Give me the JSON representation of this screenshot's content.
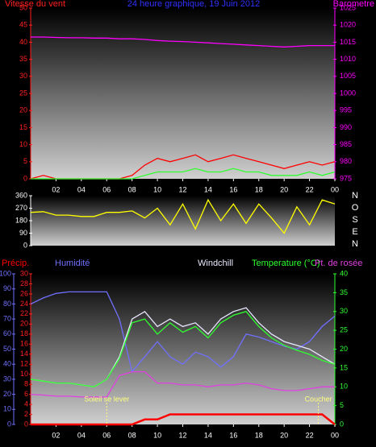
{
  "chart_data": [
    {
      "type": "line",
      "title": "24 heure graphique, 19 Juin 2012",
      "title_color": "#3030ff",
      "ylabel": "Vitesse du vent",
      "ylabel_color": "#ff2020",
      "y2label": "Barometre",
      "y2label_color": "#ff00ff",
      "x": [
        0,
        1,
        2,
        3,
        4,
        5,
        6,
        7,
        8,
        9,
        10,
        11,
        12,
        13,
        14,
        15,
        16,
        17,
        18,
        19,
        20,
        21,
        22,
        23,
        24
      ],
      "xlim": [
        0,
        24
      ],
      "xticks": [
        {
          "value": 2,
          "label": "02"
        },
        {
          "value": 4,
          "label": "04"
        },
        {
          "value": 6,
          "label": "06"
        },
        {
          "value": 8,
          "label": "08"
        },
        10,
        12,
        14,
        16,
        18,
        20,
        22,
        {
          "value": 24,
          "label": "00"
        }
      ],
      "ylim": [
        0,
        50
      ],
      "yticks": [
        0,
        5,
        10,
        15,
        20,
        25,
        30,
        35,
        40,
        45,
        50
      ],
      "y2lim": [
        975,
        1025
      ],
      "y2ticks": [
        975,
        980,
        985,
        990,
        995,
        1000,
        1005,
        1010,
        1015,
        1020,
        1025
      ],
      "series": [
        {
          "color": "#ff0000",
          "values": [
            0,
            1,
            0,
            0,
            0,
            0,
            0,
            0,
            1,
            4,
            6,
            5,
            6,
            7,
            5,
            6,
            7,
            6,
            5,
            4,
            3,
            4,
            5,
            4,
            5
          ]
        },
        {
          "color": "#30ff30",
          "values": [
            0,
            0,
            0,
            0,
            0,
            0,
            0,
            0,
            0,
            1,
            2,
            2,
            2,
            3,
            2,
            2,
            3,
            2,
            2,
            1,
            1,
            1,
            2,
            1,
            2
          ]
        },
        {
          "color": "#ff00ff",
          "axis": "y2",
          "values": [
            1016.5,
            1016.5,
            1016.4,
            1016.3,
            1016.3,
            1016.2,
            1016.2,
            1016,
            1016,
            1015.8,
            1015.5,
            1015.3,
            1015.2,
            1015,
            1014.8,
            1014.6,
            1014.4,
            1014.2,
            1014,
            1013.8,
            1013.6,
            1013.8,
            1014,
            1014,
            1014
          ]
        }
      ]
    },
    {
      "type": "line",
      "x": [
        0,
        1,
        2,
        3,
        4,
        5,
        6,
        7,
        8,
        9,
        10,
        11,
        12,
        13,
        14,
        15,
        16,
        17,
        18,
        19,
        20,
        21,
        22,
        23,
        24
      ],
      "xlim": [
        0,
        24
      ],
      "ylim": [
        0,
        360
      ],
      "yticks": [
        0,
        90,
        180,
        270,
        360
      ],
      "directions": [
        "N",
        "O",
        "S",
        "E",
        "N"
      ],
      "series": [
        {
          "color": "#ffff00",
          "values": [
            240,
            245,
            220,
            220,
            210,
            210,
            240,
            240,
            250,
            200,
            270,
            150,
            300,
            120,
            330,
            180,
            300,
            160,
            300,
            200,
            90,
            280,
            150,
            330,
            300
          ]
        }
      ]
    },
    {
      "type": "line",
      "x": [
        0,
        1,
        2,
        3,
        4,
        5,
        6,
        7,
        8,
        9,
        10,
        11,
        12,
        13,
        14,
        15,
        16,
        17,
        18,
        19,
        20,
        21,
        22,
        23,
        24
      ],
      "xlim": [
        0,
        24
      ],
      "xticks": [
        {
          "value": 2,
          "label": "02"
        },
        {
          "value": 4,
          "label": "04"
        },
        {
          "value": 6,
          "label": "06"
        },
        {
          "value": 8,
          "label": "08"
        },
        10,
        12,
        14,
        16,
        18,
        20,
        22,
        {
          "value": 24,
          "label": "00"
        }
      ],
      "ylim": [
        0,
        100
      ],
      "yticks": [
        0,
        10,
        20,
        30,
        40,
        50,
        60,
        70,
        80,
        90,
        100
      ],
      "ycolor": "#7070ff",
      "precip_lim": [
        0,
        30
      ],
      "precip_ticks": [
        0,
        2,
        4,
        6,
        8,
        10,
        12,
        14,
        16,
        18,
        20,
        22,
        24,
        26,
        28,
        30
      ],
      "precip_color": "#ff2020",
      "y2lim": [
        0,
        40
      ],
      "y2ticks": [
        0,
        5,
        10,
        15,
        20,
        25,
        30,
        35,
        40
      ],
      "y2color": "#30ff30",
      "series": [
        {
          "name": "Précip.",
          "color": "#ff0000",
          "axis": "precip",
          "values": [
            0,
            0,
            0,
            0,
            0,
            0,
            0,
            0,
            0,
            1,
            1,
            2,
            2,
            2,
            2,
            2,
            2,
            2,
            2,
            2,
            2,
            2,
            2,
            2,
            0
          ]
        },
        {
          "name": "Humidité",
          "color": "#7070ff",
          "values": [
            80,
            84,
            87,
            88,
            88,
            88,
            88,
            70,
            35,
            45,
            55,
            45,
            40,
            48,
            45,
            38,
            45,
            60,
            58,
            55,
            52,
            50,
            55,
            65,
            72
          ]
        },
        {
          "name": "Windchill",
          "color": "#e8e8ff",
          "axis": "y2",
          "values": [
            12,
            11.5,
            11,
            11,
            10.5,
            10,
            12,
            18,
            28,
            30,
            26,
            28,
            26,
            27,
            24,
            28,
            30,
            31,
            27,
            24,
            22,
            21,
            20,
            18,
            16
          ]
        },
        {
          "name": "Temperature (°C)",
          "color": "#30ff30",
          "axis": "y2",
          "values": [
            12,
            11.5,
            11,
            11,
            10.5,
            10,
            12,
            17.5,
            27,
            28,
            24,
            27,
            24.5,
            26,
            23,
            27,
            29,
            30,
            26,
            23,
            21,
            19.7,
            18.6,
            17,
            16
          ]
        },
        {
          "name": "Pt. de rosée",
          "color": "#e040e0",
          "axis": "y2",
          "values": [
            8,
            7.8,
            7.5,
            7.5,
            7.3,
            7.3,
            7.3,
            13,
            14,
            14,
            11,
            11,
            10.5,
            10.5,
            10,
            10.5,
            10.5,
            11,
            10.5,
            9.5,
            9,
            9,
            9.5,
            10,
            10
          ]
        }
      ],
      "annotations": [
        {
          "text": "Soleil se lever",
          "x": 6
        },
        {
          "text": "Coucher",
          "x": 22.7
        }
      ]
    }
  ]
}
